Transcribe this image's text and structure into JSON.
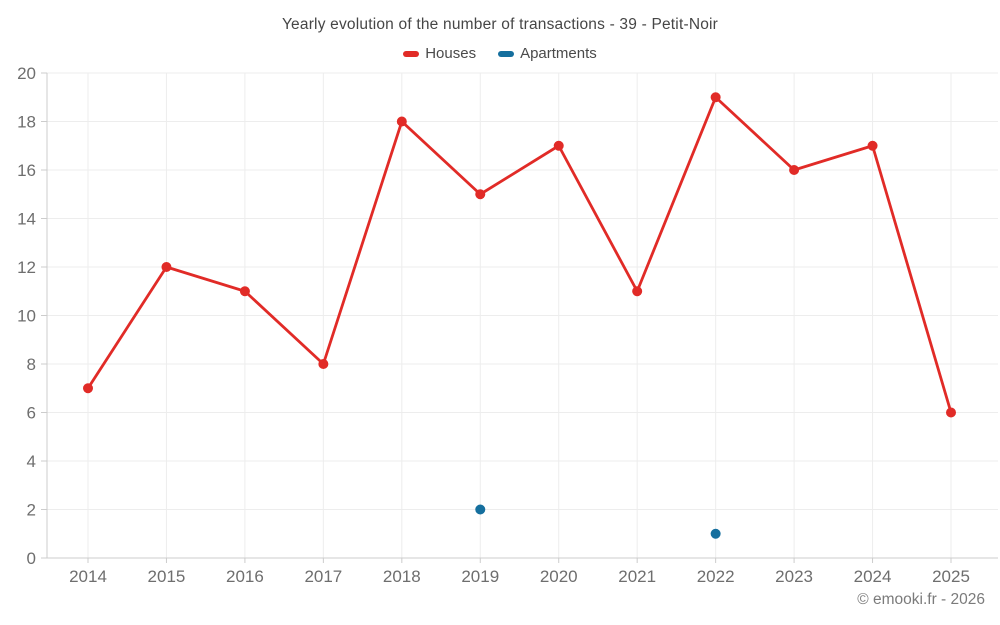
{
  "title": "Yearly evolution of the number of transactions - 39 - Petit-Noir",
  "footer": "© emooki.fr - 2026",
  "legend": {
    "items": [
      {
        "label": "Houses",
        "color": "#e12b27"
      },
      {
        "label": "Apartments",
        "color": "#156f9e"
      }
    ]
  },
  "chart_data": {
    "type": "line",
    "title": "Yearly evolution of the number of transactions - 39 - Petit-Noir",
    "categories": [
      "2014",
      "2015",
      "2016",
      "2017",
      "2018",
      "2019",
      "2020",
      "2021",
      "2022",
      "2023",
      "2024",
      "2025"
    ],
    "series": [
      {
        "name": "Houses",
        "type": "line",
        "color": "#e12b27",
        "values": [
          7,
          12,
          11,
          8,
          18,
          15,
          17,
          11,
          19,
          16,
          17,
          6
        ]
      },
      {
        "name": "Apartments",
        "type": "scatter",
        "color": "#156f9e",
        "values": [
          null,
          null,
          null,
          null,
          null,
          2,
          null,
          null,
          1,
          null,
          null,
          null
        ]
      }
    ],
    "xlabel": "",
    "ylabel": "",
    "ylim": [
      0,
      20
    ],
    "y_ticks": [
      0,
      2,
      4,
      6,
      8,
      10,
      12,
      14,
      16,
      18,
      20
    ],
    "grid": true,
    "legend_position": "top",
    "styles": {
      "grid_line_color": "#ededed",
      "axis_line_color": "#cccccc",
      "tick_label_color": "#6e6e6e"
    }
  }
}
